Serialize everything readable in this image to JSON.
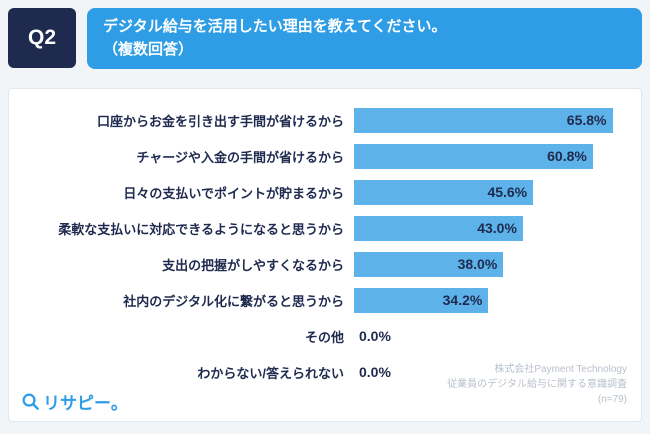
{
  "header": {
    "q_label": "Q2",
    "question_line1": "デジタル給与を活用したい理由を教えてください。",
    "question_line2": "（複数回答）"
  },
  "chart_data": {
    "type": "bar",
    "orientation": "horizontal",
    "title": "デジタル給与を活用したい理由を教えてください。（複数回答）",
    "categories": [
      "口座からお金を引き出す手間が省けるから",
      "チャージや入金の手間が省けるから",
      "日々の支払いでポイントが貯まるから",
      "柔軟な支払いに対応できるようになると思うから",
      "支出の把握がしやすくなるから",
      "社内のデジタル化に繋がると思うから",
      "その他",
      "わからない/答えられない"
    ],
    "values": [
      65.8,
      60.8,
      45.6,
      43.0,
      38.0,
      34.2,
      0.0,
      0.0
    ],
    "value_labels": [
      "65.8%",
      "60.8%",
      "45.6%",
      "43.0%",
      "38.0%",
      "34.2%",
      "0.0%",
      "0.0%"
    ],
    "xlim": [
      0,
      70
    ],
    "grid": false,
    "legend": "none",
    "bar_color": "#5db2e9",
    "label_color": "#1e2a4e"
  },
  "footer": {
    "credit_line1": "株式会社Payment Technology",
    "credit_line2": "従業員のデジタル給与に関する意識調査",
    "credit_line3": "(n=79)",
    "logo_text": "リサピー。"
  },
  "colors": {
    "q_box_bg": "#1e2a4e",
    "question_box_bg": "#2e9de6",
    "bar": "#5db2e9",
    "text_navy": "#1e2a4e",
    "credit_gray": "#b9c1cb",
    "page_bg": "#f2f5f8",
    "panel_bg": "#ffffff"
  }
}
